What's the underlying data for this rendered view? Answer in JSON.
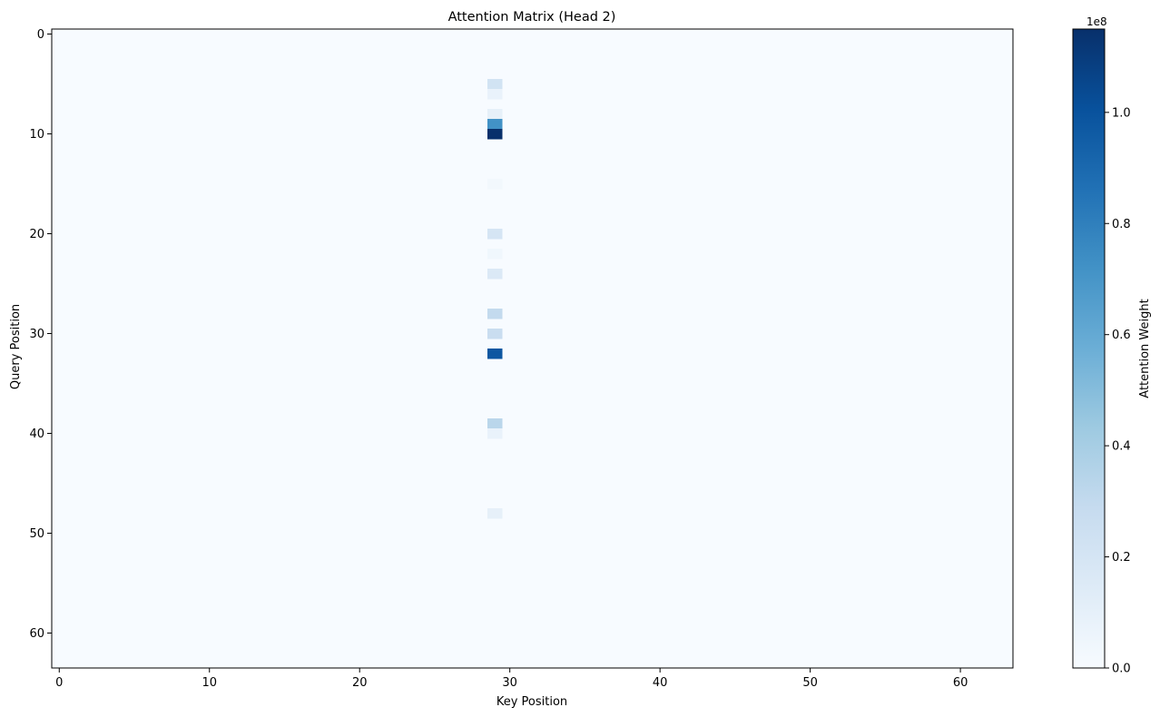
{
  "chart_data": {
    "type": "heatmap",
    "title": "Attention Matrix (Head 2)",
    "xlabel": "Key Position",
    "ylabel": "Query Position",
    "xlim": [
      -0.5,
      63.5
    ],
    "ylim": [
      63.5,
      -0.5
    ],
    "x_ticks": [
      0,
      10,
      20,
      30,
      40,
      50,
      60
    ],
    "y_ticks": [
      0,
      10,
      20,
      30,
      40,
      50,
      60
    ],
    "rows": 64,
    "cols": 64,
    "background_value": 0.0,
    "colormap": "Blues",
    "cells": [
      {
        "row": 5,
        "col": 29,
        "value": 0.22
      },
      {
        "row": 6,
        "col": 29,
        "value": 0.08
      },
      {
        "row": 8,
        "col": 29,
        "value": 0.1
      },
      {
        "row": 9,
        "col": 29,
        "value": 0.72
      },
      {
        "row": 10,
        "col": 29,
        "value": 1.15
      },
      {
        "row": 15,
        "col": 29,
        "value": 0.03
      },
      {
        "row": 20,
        "col": 29,
        "value": 0.2
      },
      {
        "row": 22,
        "col": 29,
        "value": 0.04
      },
      {
        "row": 24,
        "col": 29,
        "value": 0.16
      },
      {
        "row": 28,
        "col": 29,
        "value": 0.3
      },
      {
        "row": 30,
        "col": 29,
        "value": 0.27
      },
      {
        "row": 32,
        "col": 29,
        "value": 0.98
      },
      {
        "row": 39,
        "col": 29,
        "value": 0.33
      },
      {
        "row": 40,
        "col": 29,
        "value": 0.08
      },
      {
        "row": 48,
        "col": 29,
        "value": 0.1
      }
    ],
    "colorbar": {
      "label": "Attention Weight",
      "min": 0.0,
      "max": 1.15,
      "ticks": [
        0.0,
        0.2,
        0.4,
        0.6,
        0.8,
        1.0
      ],
      "tick_labels": [
        "0.0",
        "0.2",
        "0.4",
        "0.6",
        "0.8",
        "1.0"
      ],
      "offset_text": "1e8"
    },
    "grid": false
  }
}
